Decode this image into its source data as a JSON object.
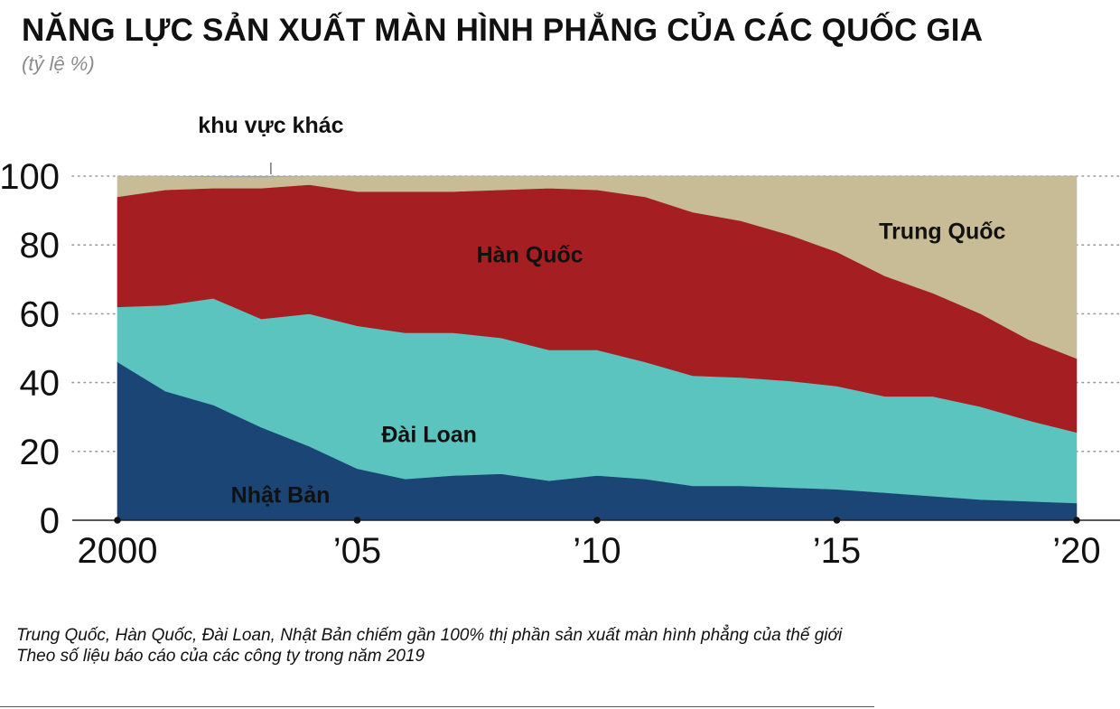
{
  "chart_data": {
    "type": "area",
    "stacked": true,
    "title": "NĂNG LỰC SẢN XUẤT MÀN HÌNH PHẲNG CỦA CÁC QUỐC GIA",
    "subtitle": "(tỷ lệ %)",
    "xlabel": "",
    "ylabel": "",
    "x": [
      2000,
      2001,
      2002,
      2003,
      2004,
      2005,
      2006,
      2007,
      2008,
      2009,
      2010,
      2011,
      2012,
      2013,
      2014,
      2015,
      2016,
      2017,
      2018,
      2019,
      2020
    ],
    "x_tick_values": [
      2000,
      2005,
      2010,
      2015,
      2020
    ],
    "x_tick_labels": [
      "2000",
      "’05",
      "’10",
      "’15",
      "’20"
    ],
    "xlim": [
      2000,
      2020
    ],
    "y_ticks": [
      0,
      20,
      40,
      60,
      80,
      100
    ],
    "ylim": [
      0,
      100
    ],
    "grid": "horizontal dotted",
    "legend": "labels inside areas",
    "series": [
      {
        "name": "Nhật Bản",
        "color": "#1b4574",
        "values": [
          46,
          37.5,
          33.5,
          27,
          21.5,
          15,
          12,
          13,
          13.5,
          11.5,
          13,
          12,
          10,
          10,
          9.5,
          9,
          8,
          7,
          6,
          5.5,
          5
        ]
      },
      {
        "name": "Đài Loan",
        "color": "#5bc4be",
        "values": [
          16,
          25,
          31,
          31.5,
          38.5,
          41.5,
          42.5,
          41.5,
          39.5,
          38,
          36.5,
          34,
          32,
          31.5,
          31,
          30,
          28,
          29,
          27,
          23.5,
          20.5
        ]
      },
      {
        "name": "Hàn Quốc",
        "color": "#a51e22",
        "values": [
          32,
          33.5,
          32,
          38,
          37.5,
          39,
          41,
          41,
          43,
          47,
          46.5,
          48,
          47.5,
          45.5,
          42.5,
          39,
          35,
          30,
          27,
          23.5,
          21.5
        ]
      },
      {
        "name": "Trung Quốc",
        "color": "#c8bc96",
        "values": [
          6,
          4,
          3.3,
          3.2,
          2.5,
          4.5,
          4.5,
          4.5,
          4,
          3.5,
          4,
          6,
          10.5,
          13,
          17,
          22,
          29,
          34,
          40,
          47.5,
          53
        ]
      },
      {
        "name": "khu vực khác",
        "color": "#9ea4ae",
        "values": [
          0,
          0,
          0.2,
          0.3,
          0,
          0,
          0,
          0,
          0,
          0,
          0,
          0,
          0,
          0,
          0,
          0,
          0,
          0,
          0,
          0,
          0
        ]
      }
    ]
  },
  "notes": [
    "Trung Quốc, Hàn Quốc, Đài Loan, Nhật Bản chiếm gần 100% thị phần sản xuất màn hình phẳng của thế giới",
    "Theo số liệu báo cáo của các công ty trong năm 2019"
  ]
}
